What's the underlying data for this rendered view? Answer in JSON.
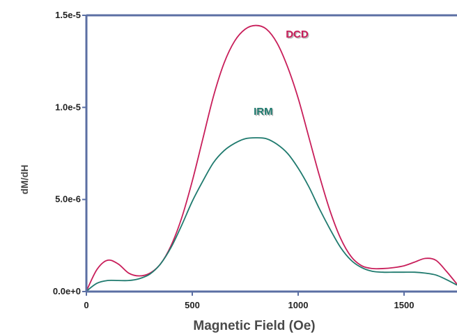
{
  "chart_data": {
    "type": "line",
    "title": "",
    "xlabel": "Magnetic Field (Oe)",
    "ylabel": "dM/dH",
    "xlim": [
      0,
      1750
    ],
    "ylim": [
      0,
      1.5e-05
    ],
    "x_ticks": [
      {
        "value": 0,
        "label": "0"
      },
      {
        "value": 500,
        "label": "500"
      },
      {
        "value": 1000,
        "label": "1000"
      },
      {
        "value": 1500,
        "label": "1500"
      }
    ],
    "y_ticks": [
      {
        "value": 0,
        "label": "0.0e+0"
      },
      {
        "value": 5e-06,
        "label": "5.0e-6"
      },
      {
        "value": 1e-05,
        "label": "1.0e-5"
      },
      {
        "value": 1.5e-05,
        "label": "1.5e-5"
      }
    ],
    "grid": false,
    "legend": "none",
    "axis_color": "#5b6fa3",
    "series": [
      {
        "name": "DCD",
        "color": "#c81e5a",
        "label_at": [
          995,
          1.38e-05
        ],
        "x": [
          0,
          50,
          100,
          150,
          200,
          250,
          300,
          350,
          400,
          450,
          500,
          550,
          600,
          650,
          700,
          750,
          800,
          850,
          900,
          950,
          1000,
          1050,
          1100,
          1150,
          1200,
          1250,
          1300,
          1350,
          1400,
          1450,
          1500,
          1550,
          1600,
          1650,
          1700,
          1750
        ],
        "values": [
          2e-08,
          1.2e-06,
          1.7e-06,
          1.5e-06,
          1e-06,
          8.5e-07,
          1e-06,
          1.5e-06,
          2.5e-06,
          4e-06,
          6e-06,
          8.3e-06,
          1.06e-05,
          1.24e-05,
          1.36e-05,
          1.425e-05,
          1.445e-05,
          1.425e-05,
          1.35e-05,
          1.22e-05,
          1.05e-05,
          8.4e-06,
          6.3e-06,
          4.4e-06,
          2.9e-06,
          1.9e-06,
          1.4e-06,
          1.25e-06,
          1.25e-06,
          1.3e-06,
          1.4e-06,
          1.6e-06,
          1.8e-06,
          1.7e-06,
          1.1e-06,
          4e-07
        ]
      },
      {
        "name": "IRM",
        "color": "#1f7a6e",
        "label_at": [
          835,
          9.6e-06
        ],
        "x": [
          0,
          50,
          100,
          150,
          200,
          250,
          300,
          350,
          400,
          450,
          500,
          550,
          600,
          650,
          700,
          750,
          800,
          850,
          900,
          950,
          1000,
          1050,
          1100,
          1150,
          1200,
          1250,
          1300,
          1350,
          1400,
          1450,
          1500,
          1550,
          1600,
          1650,
          1700,
          1750
        ],
        "values": [
          2e-08,
          4.5e-07,
          6e-07,
          6e-07,
          6e-07,
          7e-07,
          9.5e-07,
          1.5e-06,
          2.4e-06,
          3.6e-06,
          4.9e-06,
          6e-06,
          7e-06,
          7.65e-06,
          8.05e-06,
          8.3e-06,
          8.35e-06,
          8.3e-06,
          8e-06,
          7.5e-06,
          6.7e-06,
          5.7e-06,
          4.5e-06,
          3.4e-06,
          2.4e-06,
          1.7e-06,
          1.3e-06,
          1.1e-06,
          1.05e-06,
          1.05e-06,
          1.05e-06,
          1.05e-06,
          1e-06,
          9e-07,
          6.5e-07,
          3.5e-07
        ]
      }
    ]
  }
}
